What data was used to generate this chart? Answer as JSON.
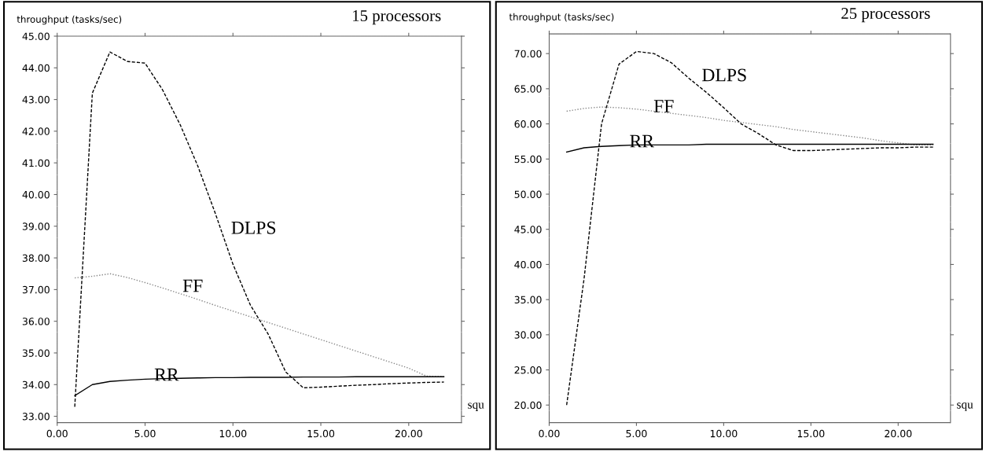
{
  "chart_data": [
    {
      "type": "line",
      "title": "15 processors",
      "xlabel": "squ",
      "ylabel": "throughput (tasks/sec)",
      "x": [
        1,
        2,
        3,
        4,
        5,
        6,
        7,
        8,
        9,
        10,
        11,
        12,
        13,
        14,
        15,
        16,
        17,
        18,
        19,
        20,
        21,
        22
      ],
      "series": [
        {
          "name": "DLPS",
          "color": "#000000",
          "line_style": "dashed",
          "values": [
            33.3,
            43.2,
            44.5,
            44.2,
            44.15,
            43.3,
            42.2,
            40.9,
            39.4,
            37.8,
            36.5,
            35.6,
            34.4,
            33.9,
            33.92,
            33.95,
            33.98,
            34.0,
            34.03,
            34.05,
            34.07,
            34.08
          ]
        },
        {
          "name": "FF",
          "color": "#888888",
          "line_style": "dotted",
          "values": [
            37.37,
            37.42,
            37.5,
            37.38,
            37.22,
            37.05,
            36.87,
            36.69,
            36.5,
            36.32,
            36.14,
            35.96,
            35.78,
            35.6,
            35.42,
            35.24,
            35.06,
            34.88,
            34.7,
            34.52,
            34.27,
            34.25
          ]
        },
        {
          "name": "RR",
          "color": "#000000",
          "line_style": "solid",
          "values": [
            33.65,
            34.0,
            34.1,
            34.14,
            34.17,
            34.19,
            34.2,
            34.21,
            34.22,
            34.22,
            34.23,
            34.23,
            34.23,
            34.24,
            34.24,
            34.24,
            34.25,
            34.25,
            34.25,
            34.25,
            34.25,
            34.25
          ]
        }
      ],
      "xlim": [
        0,
        23
      ],
      "ylim": [
        32.8,
        45.0
      ],
      "xticks": [
        {
          "value": 0,
          "label": "0.00"
        },
        {
          "value": 5,
          "label": "5.00"
        },
        {
          "value": 10,
          "label": "10.00"
        },
        {
          "value": 15,
          "label": "15.00"
        },
        {
          "value": 20,
          "label": "20.00"
        }
      ],
      "yticks": [
        {
          "value": 33,
          "label": "33.00"
        },
        {
          "value": 34,
          "label": "34.00"
        },
        {
          "value": 35,
          "label": "35.00"
        },
        {
          "value": 36,
          "label": "36.00"
        },
        {
          "value": 37,
          "label": "37.00"
        },
        {
          "value": 38,
          "label": "38.00"
        },
        {
          "value": 39,
          "label": "39.00"
        },
        {
          "value": 40,
          "label": "40.00"
        },
        {
          "value": 41,
          "label": "41.00"
        },
        {
          "value": 42,
          "label": "42.00"
        },
        {
          "value": 43,
          "label": "43.00"
        },
        {
          "value": 44,
          "label": "44.00"
        },
        {
          "value": 45,
          "label": "45.00"
        }
      ],
      "grid": false,
      "legend": false,
      "marker": "none"
    },
    {
      "type": "line",
      "title": "25 processors",
      "xlabel": "squ",
      "ylabel": "throughput (tasks/sec)",
      "x": [
        1,
        2,
        3,
        4,
        5,
        6,
        7,
        8,
        9,
        10,
        11,
        12,
        13,
        14,
        15,
        16,
        17,
        18,
        19,
        20,
        21,
        22
      ],
      "series": [
        {
          "name": "DLPS",
          "color": "#000000",
          "line_style": "dashed",
          "values": [
            20.0,
            38.0,
            60.0,
            68.5,
            70.3,
            70.0,
            68.7,
            66.5,
            64.5,
            62.3,
            60.0,
            58.6,
            57.0,
            56.2,
            56.2,
            56.3,
            56.4,
            56.5,
            56.6,
            56.6,
            56.7,
            56.7
          ]
        },
        {
          "name": "FF",
          "color": "#888888",
          "line_style": "dotted",
          "values": [
            61.8,
            62.2,
            62.4,
            62.3,
            62.1,
            61.8,
            61.5,
            61.2,
            60.9,
            60.5,
            60.2,
            59.9,
            59.6,
            59.2,
            58.9,
            58.6,
            58.3,
            58.0,
            57.6,
            57.3,
            57.0,
            57.0
          ]
        },
        {
          "name": "RR",
          "color": "#000000",
          "line_style": "solid",
          "values": [
            56.0,
            56.6,
            56.8,
            56.9,
            57.0,
            57.0,
            57.0,
            57.0,
            57.1,
            57.1,
            57.1,
            57.1,
            57.1,
            57.1,
            57.1,
            57.1,
            57.1,
            57.1,
            57.1,
            57.1,
            57.1,
            57.1
          ]
        }
      ],
      "xlim": [
        0,
        23
      ],
      "ylim": [
        17.5,
        72.8
      ],
      "xticks": [
        {
          "value": 0,
          "label": "0.00"
        },
        {
          "value": 5,
          "label": "5.00"
        },
        {
          "value": 10,
          "label": "10.00"
        },
        {
          "value": 15,
          "label": "15.00"
        },
        {
          "value": 20,
          "label": "20.00"
        }
      ],
      "yticks": [
        {
          "value": 20,
          "label": "20.00"
        },
        {
          "value": 25,
          "label": "25.00"
        },
        {
          "value": 30,
          "label": "30.00"
        },
        {
          "value": 35,
          "label": "35.00"
        },
        {
          "value": 40,
          "label": "40.00"
        },
        {
          "value": 45,
          "label": "45.00"
        },
        {
          "value": 50,
          "label": "50.00"
        },
        {
          "value": 55,
          "label": "55.00"
        },
        {
          "value": 60,
          "label": "60.00"
        },
        {
          "value": 65,
          "label": "65.00"
        },
        {
          "value": 70,
          "label": "70.00"
        }
      ],
      "grid": false,
      "legend": false,
      "marker": "none"
    }
  ]
}
